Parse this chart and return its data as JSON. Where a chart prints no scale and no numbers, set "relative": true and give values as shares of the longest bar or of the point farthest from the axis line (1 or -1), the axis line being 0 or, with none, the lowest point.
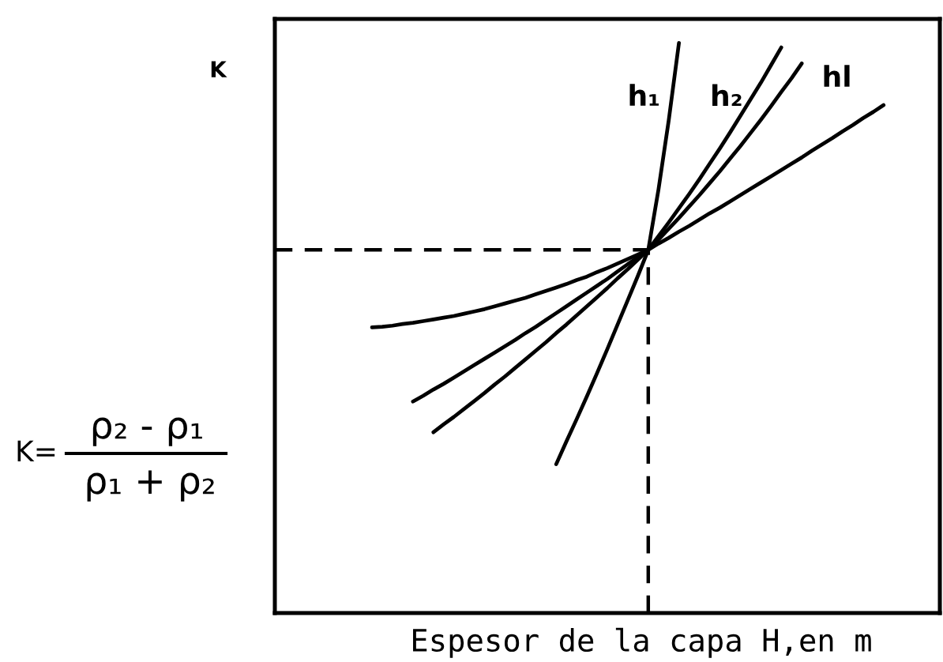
{
  "chart_data": {
    "type": "line",
    "relative": true,
    "xlabel": "Espesor de la capa H,en m",
    "ylabel": "K",
    "annotations": [
      "K=",
      "ρ₂ - ρ₁",
      "ρ₁ + ρ₂"
    ],
    "categories": [
      null,
      null,
      null,
      null,
      null,
      null,
      null,
      null,
      null,
      null,
      null,
      null,
      null,
      null,
      null,
      null,
      null,
      null,
      null,
      null,
      null,
      null,
      null,
      null,
      null,
      null,
      null,
      null,
      null,
      null,
      null,
      null,
      null,
      null,
      null,
      null,
      null,
      null,
      null,
      null,
      null,
      null,
      null,
      null,
      null,
      null,
      null,
      null,
      null,
      null,
      null,
      null,
      null,
      null,
      null,
      null,
      null,
      null,
      null,
      null,
      null,
      null,
      null,
      null,
      null
    ],
    "series": [
      {
        "name": "h₁",
        "color": "#000000",
        "values": [
          null,
          null,
          null,
          null,
          null,
          null,
          null,
          null,
          null,
          null,
          null,
          null,
          null,
          null,
          null,
          null,
          null,
          null,
          null,
          null,
          null,
          null,
          null,
          null,
          null,
          null,
          null,
          0.261,
          0.301,
          0.34,
          0.38,
          0.421,
          0.463,
          0.506,
          0.549,
          0.592,
          0.637,
          0.743,
          0.864,
          1.0,
          null,
          null,
          null,
          null,
          null,
          null,
          null,
          null,
          null,
          null,
          null,
          null,
          null,
          null,
          null,
          null,
          null,
          null,
          null,
          null,
          null,
          null,
          null,
          null,
          null
        ]
      },
      {
        "name": "h₂",
        "color": "#000000",
        "values": [
          null,
          null,
          null,
          null,
          null,
          null,
          null,
          null,
          null,
          null,
          null,
          null,
          null,
          null,
          null,
          0.317,
          0.331,
          0.344,
          0.358,
          0.372,
          0.386,
          0.401,
          0.415,
          0.43,
          0.445,
          0.46,
          0.475,
          0.491,
          0.506,
          0.522,
          0.538,
          0.554,
          0.57,
          0.587,
          0.603,
          0.62,
          0.637,
          0.661,
          0.685,
          0.71,
          0.735,
          0.761,
          0.788,
          0.815,
          0.843,
          0.872,
          0.901,
          0.93,
          0.961,
          0.992,
          null,
          null,
          null,
          null,
          null,
          null,
          null,
          null,
          null,
          null,
          null,
          null,
          null,
          null,
          null
        ]
      },
      {
        "name": "hl",
        "color": "#000000",
        "values": [
          null,
          null,
          null,
          null,
          null,
          null,
          null,
          null,
          null,
          null,
          null,
          null,
          null,
          0.371,
          0.381,
          0.392,
          0.402,
          0.413,
          0.424,
          0.435,
          0.446,
          0.457,
          0.468,
          0.479,
          0.491,
          0.502,
          0.514,
          0.526,
          0.538,
          0.55,
          0.562,
          0.574,
          0.586,
          0.599,
          0.612,
          0.624,
          0.637,
          0.655,
          0.674,
          0.693,
          0.713,
          0.733,
          0.754,
          0.775,
          0.797,
          0.819,
          0.842,
          0.865,
          0.889,
          0.914,
          0.938,
          0.964,
          null,
          null,
          null,
          null,
          null,
          null,
          null,
          null,
          null,
          null,
          null,
          null,
          null
        ]
      },
      {
        "color": "#000000",
        "values": [
          null,
          null,
          null,
          null,
          null,
          null,
          null,
          null,
          null,
          0.501,
          0.502,
          0.504,
          0.507,
          0.509,
          0.512,
          0.515,
          0.518,
          0.521,
          0.525,
          0.529,
          0.533,
          0.538,
          0.543,
          0.548,
          0.553,
          0.559,
          0.565,
          0.571,
          0.577,
          0.584,
          0.59,
          0.598,
          0.605,
          0.613,
          0.621,
          0.629,
          0.637,
          0.648,
          0.658,
          0.669,
          0.679,
          0.69,
          0.701,
          0.711,
          0.722,
          0.733,
          0.744,
          0.755,
          0.766,
          0.777,
          0.788,
          0.799,
          0.811,
          0.822,
          0.833,
          0.845,
          0.856,
          0.868,
          0.879,
          0.891,
          null,
          null,
          null,
          null,
          null
        ]
      }
    ],
    "ref_lines": [
      {
        "axis": "y",
        "value": 0.637,
        "color": "#000000",
        "line_style": "dashed"
      }
    ]
  }
}
